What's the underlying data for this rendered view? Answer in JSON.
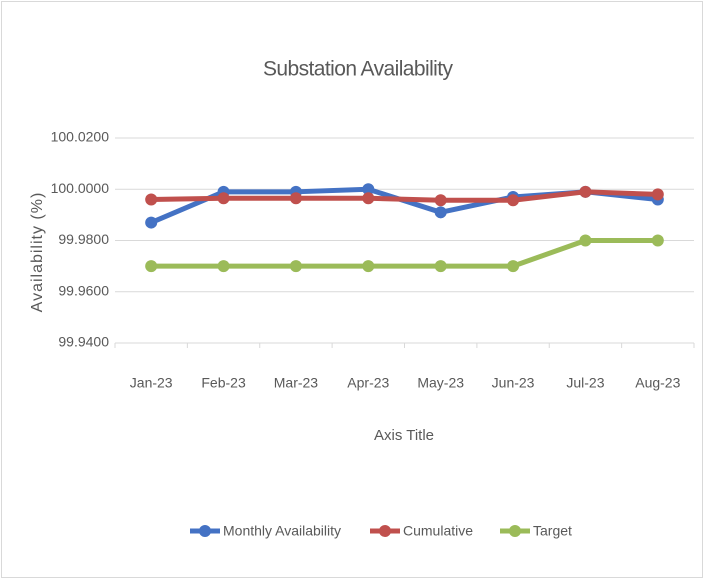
{
  "chart_data": {
    "type": "line",
    "title": "Substation Availability",
    "x_label": "Axis Title",
    "y_label": "Availability (%)",
    "categories": [
      "Jan-23",
      "Feb-23",
      "Mar-23",
      "Apr-23",
      "May-23",
      "Jun-23",
      "Jul-23",
      "Aug-23"
    ],
    "series": [
      {
        "name": "Monthly Availability",
        "color": "#4472c4",
        "values": [
          99.987,
          99.999,
          99.999,
          100.0,
          99.991,
          99.997,
          99.999,
          99.996
        ]
      },
      {
        "name": "Cumulative",
        "color": "#c0504d",
        "values": [
          99.996,
          99.9965,
          99.9965,
          99.9965,
          99.9957,
          99.9957,
          99.999,
          99.998
        ]
      },
      {
        "name": "Target",
        "color": "#9bbb59",
        "values": [
          99.97,
          99.97,
          99.97,
          99.97,
          99.97,
          99.97,
          99.98,
          99.98
        ]
      }
    ],
    "ylim": [
      99.94,
      100.02
    ],
    "yticks": [
      {
        "value": 99.94,
        "label": "99.9400"
      },
      {
        "value": 99.96,
        "label": "99.9600"
      },
      {
        "value": 99.98,
        "label": "99.9800"
      },
      {
        "value": 100.0,
        "label": "100.0000"
      },
      {
        "value": 100.02,
        "label": "100.0200"
      }
    ],
    "grid": true,
    "legend": "bottom"
  }
}
